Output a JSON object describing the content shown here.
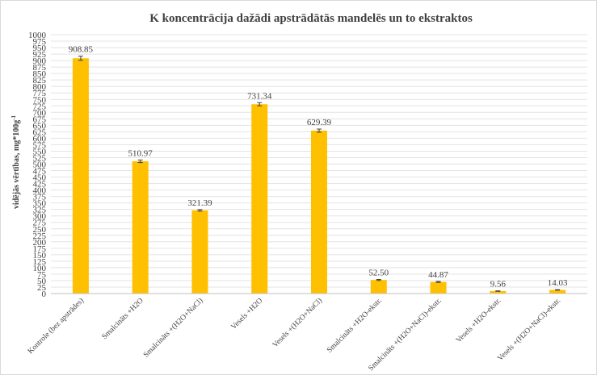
{
  "chart_data": {
    "type": "bar",
    "title": "K koncentrācija dažādi apstrādātās mandelēs un to ekstraktos",
    "ylabel": "vidējās vērtības, mg*100g",
    "ylabel_superscript": "-1",
    "xlabel": "",
    "ylim": [
      0,
      1000
    ],
    "yticks": [
      "0",
      "25",
      "50",
      "75",
      "100",
      "125",
      "150",
      "175",
      "200",
      "225",
      "250",
      "275",
      "300",
      "325",
      "350",
      "375",
      "400",
      "425",
      "450",
      "475",
      "500",
      "525",
      "550",
      "575",
      "600",
      "625",
      "650",
      "675",
      "700",
      "725",
      "750",
      "775",
      "800",
      "825",
      "850",
      "875",
      "900",
      "925",
      "950",
      "975",
      "1000"
    ],
    "grid": true,
    "bar_color": "#FFC000",
    "categories": [
      "Kontrole (bez apstrādes)",
      "Smalcināts +H2O",
      "Smalcināts +(H2O+NaCl)",
      "Vesels +H2O",
      "Vesels +(H2O+NaCl)",
      "Smalcināts +H2O-ekstr.",
      "Smalcināts +(H2O+NaCl)-ekstr.",
      "Vesels +H2O-ekstr.",
      "Vesels +(H2O+NaCl)-ekstr."
    ],
    "values": [
      908.85,
      510.97,
      321.39,
      731.34,
      629.39,
      52.5,
      44.87,
      9.56,
      14.03
    ],
    "value_labels": [
      "908.85",
      "510.97",
      "321.39",
      "731.34",
      "629.39",
      "52.50",
      "44.87",
      "9.56",
      "14.03"
    ],
    "errors": [
      8,
      5,
      3,
      6,
      6,
      2,
      2,
      1,
      1
    ]
  }
}
